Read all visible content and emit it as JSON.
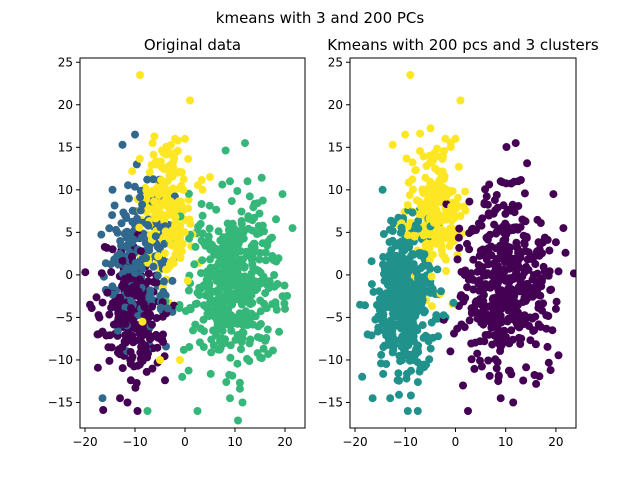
{
  "figure": {
    "suptitle": "kmeans with 3 and 200 PCs"
  },
  "palette": {
    "cluster_dark_purple": "#440154",
    "cluster_blue": "#31688e",
    "cluster_teal": "#21918c",
    "cluster_green": "#35b779",
    "cluster_yellow": "#fde725"
  },
  "chart_data": [
    {
      "type": "scatter",
      "title": "Original data",
      "xlabel": "",
      "ylabel": "",
      "xlim": [
        -21,
        24
      ],
      "ylim": [
        -18,
        25.5
      ],
      "xticks": [
        -20,
        -10,
        0,
        10,
        20
      ],
      "yticks": [
        -15,
        -10,
        -5,
        0,
        5,
        10,
        15,
        20,
        25
      ],
      "grid": false,
      "clusters": [
        {
          "color": "#440154",
          "center": [
            -10.5,
            -5
          ],
          "spread": [
            3.0,
            3.8
          ],
          "count": 230
        },
        {
          "color": "#31688e",
          "center": [
            -9,
            1.5
          ],
          "spread": [
            3.2,
            4.5
          ],
          "count": 200
        },
        {
          "color": "#35b779",
          "center": [
            9.5,
            -1
          ],
          "spread": [
            4.2,
            4.8
          ],
          "count": 450
        },
        {
          "color": "#fde725",
          "center": [
            -3.5,
            7.5
          ],
          "spread": [
            2.6,
            4.0
          ],
          "count": 220
        }
      ],
      "points": [
        {
          "x": -9,
          "y": 23.5,
          "color": "#fde725"
        },
        {
          "x": 1,
          "y": 20.5,
          "color": "#fde725"
        },
        {
          "x": 12,
          "y": 15.5,
          "color": "#35b779"
        },
        {
          "x": -10,
          "y": 16.5,
          "color": "#31688e"
        },
        {
          "x": -12.5,
          "y": 15.3,
          "color": "#31688e"
        },
        {
          "x": -6.5,
          "y": 15.5,
          "color": "#fde725"
        },
        {
          "x": -2,
          "y": 16,
          "color": "#fde725"
        },
        {
          "x": 0,
          "y": 16,
          "color": "#fde725"
        },
        {
          "x": 9,
          "y": 11,
          "color": "#35b779"
        },
        {
          "x": 12.5,
          "y": 11,
          "color": "#35b779"
        },
        {
          "x": 19.5,
          "y": 9.5,
          "color": "#35b779"
        },
        {
          "x": 21.5,
          "y": 5.5,
          "color": "#35b779"
        },
        {
          "x": 19.5,
          "y": -2.5,
          "color": "#35b779"
        },
        {
          "x": 20,
          "y": -4,
          "color": "#35b779"
        },
        {
          "x": -19,
          "y": -3.5,
          "color": "#440154"
        },
        {
          "x": -17.5,
          "y": -7,
          "color": "#440154"
        },
        {
          "x": -16.5,
          "y": -14.5,
          "color": "#31688e"
        },
        {
          "x": -13,
          "y": -14.5,
          "color": "#440154"
        },
        {
          "x": -11.5,
          "y": -15,
          "color": "#440154"
        },
        {
          "x": -9.5,
          "y": -16,
          "color": "#440154"
        },
        {
          "x": -7.5,
          "y": -16,
          "color": "#35b779"
        },
        {
          "x": 2.5,
          "y": -16,
          "color": "#35b779"
        },
        {
          "x": 9,
          "y": -14.5,
          "color": "#35b779"
        },
        {
          "x": 11.5,
          "y": -15,
          "color": "#35b779"
        },
        {
          "x": -5,
          "y": -10,
          "color": "#fde725"
        },
        {
          "x": -1,
          "y": -10,
          "color": "#fde725"
        },
        {
          "x": -8.5,
          "y": -5.5,
          "color": "#fde725"
        },
        {
          "x": 5,
          "y": 11.5,
          "color": "#fde725"
        },
        {
          "x": 3.5,
          "y": 10,
          "color": "#fde725"
        },
        {
          "x": -14.5,
          "y": 10,
          "color": "#31688e"
        }
      ]
    },
    {
      "type": "scatter",
      "title": "Kmeans with 200 pcs and 3 clusters",
      "xlabel": "",
      "ylabel": "",
      "xlim": [
        -21,
        24
      ],
      "ylim": [
        -18,
        25.5
      ],
      "xticks": [
        -20,
        -10,
        0,
        10,
        20
      ],
      "yticks": [
        -15,
        -10,
        -5,
        0,
        5,
        10,
        15,
        20,
        25
      ],
      "grid": false,
      "clusters": [
        {
          "color": "#21918c",
          "center": [
            -10,
            -3
          ],
          "spread": [
            3.0,
            4.5
          ],
          "count": 430
        },
        {
          "color": "#440154",
          "center": [
            10,
            -1
          ],
          "spread": [
            4.2,
            4.8
          ],
          "count": 450
        },
        {
          "color": "#fde725",
          "center": [
            -4,
            7.5
          ],
          "spread": [
            2.6,
            3.6
          ],
          "count": 220
        }
      ],
      "points": [
        {
          "x": -9,
          "y": 23.5,
          "color": "#fde725"
        },
        {
          "x": 1,
          "y": 20.5,
          "color": "#fde725"
        },
        {
          "x": 12,
          "y": 15.5,
          "color": "#440154"
        },
        {
          "x": -10,
          "y": 16.5,
          "color": "#fde725"
        },
        {
          "x": -12.5,
          "y": 15.3,
          "color": "#fde725"
        },
        {
          "x": -2,
          "y": 16,
          "color": "#fde725"
        },
        {
          "x": 0,
          "y": 16,
          "color": "#fde725"
        },
        {
          "x": 9,
          "y": 11,
          "color": "#440154"
        },
        {
          "x": 12.5,
          "y": 11,
          "color": "#440154"
        },
        {
          "x": 19.5,
          "y": 9.5,
          "color": "#440154"
        },
        {
          "x": 21.5,
          "y": 5.5,
          "color": "#440154"
        },
        {
          "x": 20,
          "y": -4,
          "color": "#440154"
        },
        {
          "x": -14.5,
          "y": 10,
          "color": "#21918c"
        },
        {
          "x": -19,
          "y": -3.5,
          "color": "#21918c"
        },
        {
          "x": -17.5,
          "y": -7,
          "color": "#21918c"
        },
        {
          "x": -16.5,
          "y": -14.5,
          "color": "#21918c"
        },
        {
          "x": -13,
          "y": -14.5,
          "color": "#21918c"
        },
        {
          "x": -9.5,
          "y": -16,
          "color": "#21918c"
        },
        {
          "x": -7.5,
          "y": -16,
          "color": "#21918c"
        },
        {
          "x": 2.5,
          "y": -16,
          "color": "#440154"
        },
        {
          "x": 1.5,
          "y": -13,
          "color": "#440154"
        },
        {
          "x": 9,
          "y": -14.5,
          "color": "#440154"
        },
        {
          "x": 11.5,
          "y": -15,
          "color": "#440154"
        },
        {
          "x": -1,
          "y": -9,
          "color": "#440154"
        }
      ]
    }
  ]
}
